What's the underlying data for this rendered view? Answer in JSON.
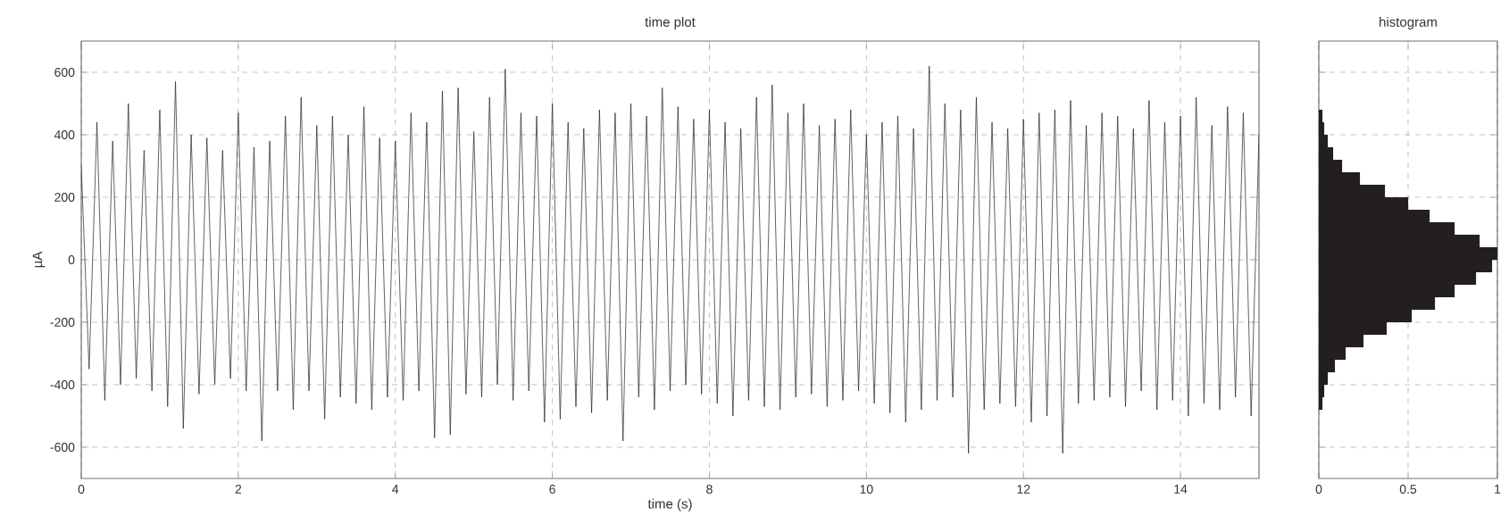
{
  "chart_data": [
    {
      "type": "line",
      "title": "time plot",
      "xlabel": "time (s)",
      "ylabel": "µA",
      "xlim": [
        0,
        15
      ],
      "ylim": [
        -700,
        700
      ],
      "xticks": [
        0,
        2,
        4,
        6,
        8,
        10,
        12,
        14
      ],
      "yticks": [
        -600,
        -400,
        -200,
        0,
        200,
        400,
        600
      ],
      "grid": true,
      "series": [
        {
          "color": "#231f20",
          "x": [
            0,
            0.1,
            0.2,
            0.3,
            0.4,
            0.5,
            0.6,
            0.7,
            0.8,
            0.9,
            1,
            1.1,
            1.2,
            1.3,
            1.4,
            1.5,
            1.6,
            1.7,
            1.8,
            1.9,
            2,
            2.1,
            2.2,
            2.3,
            2.4,
            2.5,
            2.6,
            2.7,
            2.8,
            2.9,
            3,
            3.1,
            3.2,
            3.3,
            3.4,
            3.5,
            3.6,
            3.7,
            3.8,
            3.9,
            4,
            4.1,
            4.2,
            4.3,
            4.4,
            4.5,
            4.6,
            4.7,
            4.8,
            4.9,
            5,
            5.1,
            5.2,
            5.3,
            5.4,
            5.5,
            5.6,
            5.7,
            5.8,
            5.9,
            6,
            6.1,
            6.2,
            6.3,
            6.4,
            6.5,
            6.6,
            6.7,
            6.8,
            6.9,
            7,
            7.1,
            7.2,
            7.3,
            7.4,
            7.5,
            7.6,
            7.7,
            7.8,
            7.9,
            8,
            8.1,
            8.2,
            8.3,
            8.4,
            8.5,
            8.6,
            8.7,
            8.8,
            8.9,
            9,
            9.1,
            9.2,
            9.3,
            9.4,
            9.5,
            9.6,
            9.7,
            9.8,
            9.9,
            10,
            10.1,
            10.2,
            10.3,
            10.4,
            10.5,
            10.6,
            10.7,
            10.8,
            10.9,
            11,
            11.1,
            11.2,
            11.3,
            11.4,
            11.5,
            11.6,
            11.7,
            11.8,
            11.9,
            12,
            12.1,
            12.2,
            12.3,
            12.4,
            12.5,
            12.6,
            12.7,
            12.8,
            12.9,
            13,
            13.1,
            13.2,
            13.3,
            13.4,
            13.5,
            13.6,
            13.7,
            13.8,
            13.9,
            14,
            14.1,
            14.2,
            14.3,
            14.4,
            14.5,
            14.6,
            14.7,
            14.8,
            14.9,
            15
          ],
          "values": [
            300,
            -350,
            440,
            -450,
            380,
            -400,
            500,
            -380,
            350,
            -420,
            480,
            -470,
            570,
            -540,
            400,
            -430,
            390,
            -400,
            350,
            -380,
            470,
            -420,
            360,
            -580,
            380,
            -420,
            460,
            -480,
            520,
            -420,
            430,
            -510,
            460,
            -440,
            400,
            -460,
            490,
            -480,
            390,
            -440,
            380,
            -450,
            470,
            -420,
            440,
            -570,
            540,
            -560,
            550,
            -430,
            410,
            -440,
            520,
            -400,
            610,
            -450,
            470,
            -420,
            460,
            -520,
            500,
            -510,
            440,
            -470,
            420,
            -490,
            480,
            -450,
            470,
            -580,
            500,
            -440,
            460,
            -480,
            550,
            -420,
            490,
            -400,
            450,
            -430,
            480,
            -460,
            440,
            -500,
            420,
            -450,
            520,
            -470,
            560,
            -480,
            470,
            -440,
            500,
            -430,
            430,
            -470,
            450,
            -450,
            480,
            -420,
            400,
            -460,
            440,
            -490,
            460,
            -520,
            420,
            -480,
            620,
            -450,
            500,
            -440,
            480,
            -620,
            520,
            -480,
            440,
            -460,
            420,
            -470,
            450,
            -520,
            470,
            -500,
            480,
            -620,
            510,
            -460,
            430,
            -450,
            470,
            -440,
            460,
            -470,
            420,
            -420,
            510,
            -480,
            440,
            -450,
            460,
            -500,
            520,
            -460,
            430,
            -480,
            490,
            -440,
            470,
            -500,
            400
          ]
        }
      ]
    },
    {
      "type": "histogram",
      "title": "histogram",
      "orientation": "horizontal",
      "xlim": [
        0,
        1
      ],
      "ylim": [
        -700,
        700
      ],
      "xticks": [
        0,
        0.5,
        1
      ],
      "yticks": [
        -600,
        -400,
        -200,
        0,
        200,
        400,
        600
      ],
      "grid": true,
      "tick_labels": "x",
      "color": "#231f20",
      "bins": [
        -480,
        -440,
        -400,
        -360,
        -320,
        -280,
        -240,
        -200,
        -160,
        -120,
        -80,
        -40,
        0,
        40,
        80,
        120,
        160,
        200,
        240,
        280,
        320,
        360,
        400,
        440,
        480
      ],
      "values": [
        0.02,
        0.03,
        0.05,
        0.09,
        0.15,
        0.25,
        0.38,
        0.52,
        0.65,
        0.76,
        0.88,
        0.97,
        1.0,
        0.9,
        0.76,
        0.62,
        0.5,
        0.37,
        0.23,
        0.13,
        0.08,
        0.05,
        0.03,
        0.02
      ]
    }
  ]
}
